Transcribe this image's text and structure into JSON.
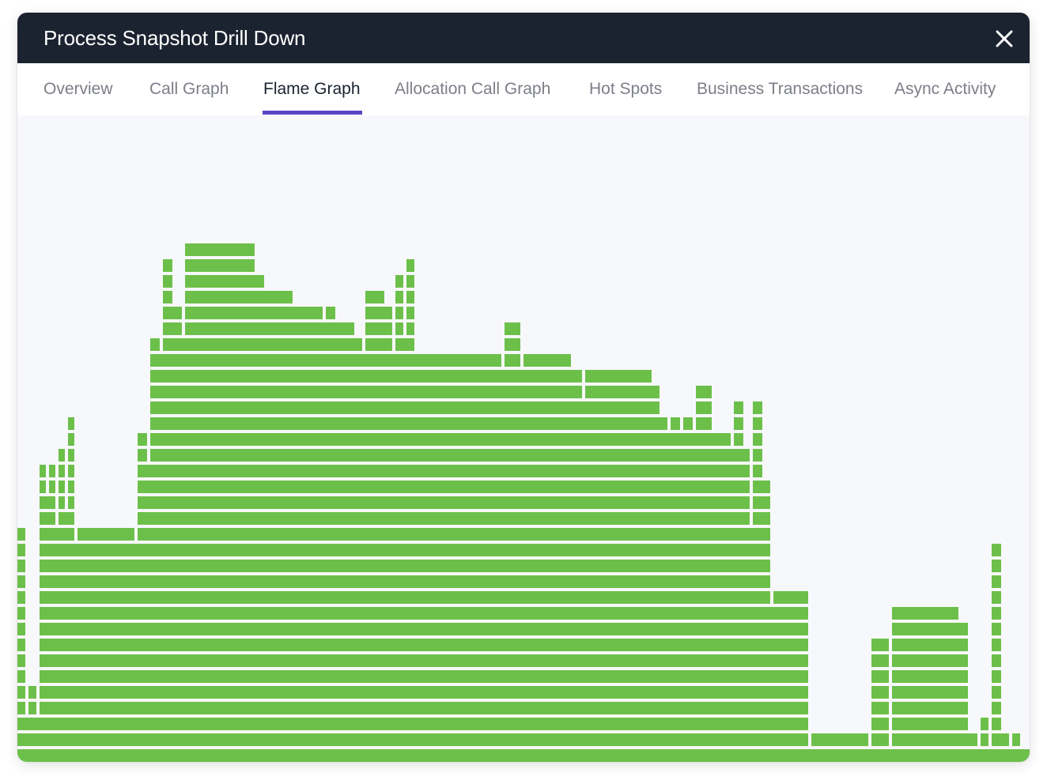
{
  "window": {
    "title": "Process Snapshot Drill Down",
    "close_icon": "close-icon"
  },
  "tabs": [
    {
      "label": "Overview",
      "active": false
    },
    {
      "label": "Call Graph",
      "active": false
    },
    {
      "label": "Flame Graph",
      "active": true
    },
    {
      "label": "Allocation Call Graph",
      "active": false
    },
    {
      "label": "Hot Spots",
      "active": false
    },
    {
      "label": "Business Transactions",
      "active": false
    },
    {
      "label": "Async Activity",
      "active": false
    }
  ],
  "colors": {
    "titlebar": "#1b2330",
    "active_tab_indicator": "#5a45c7",
    "flame_frame": "#6cc04a",
    "background": "#f7f8fc"
  }
}
